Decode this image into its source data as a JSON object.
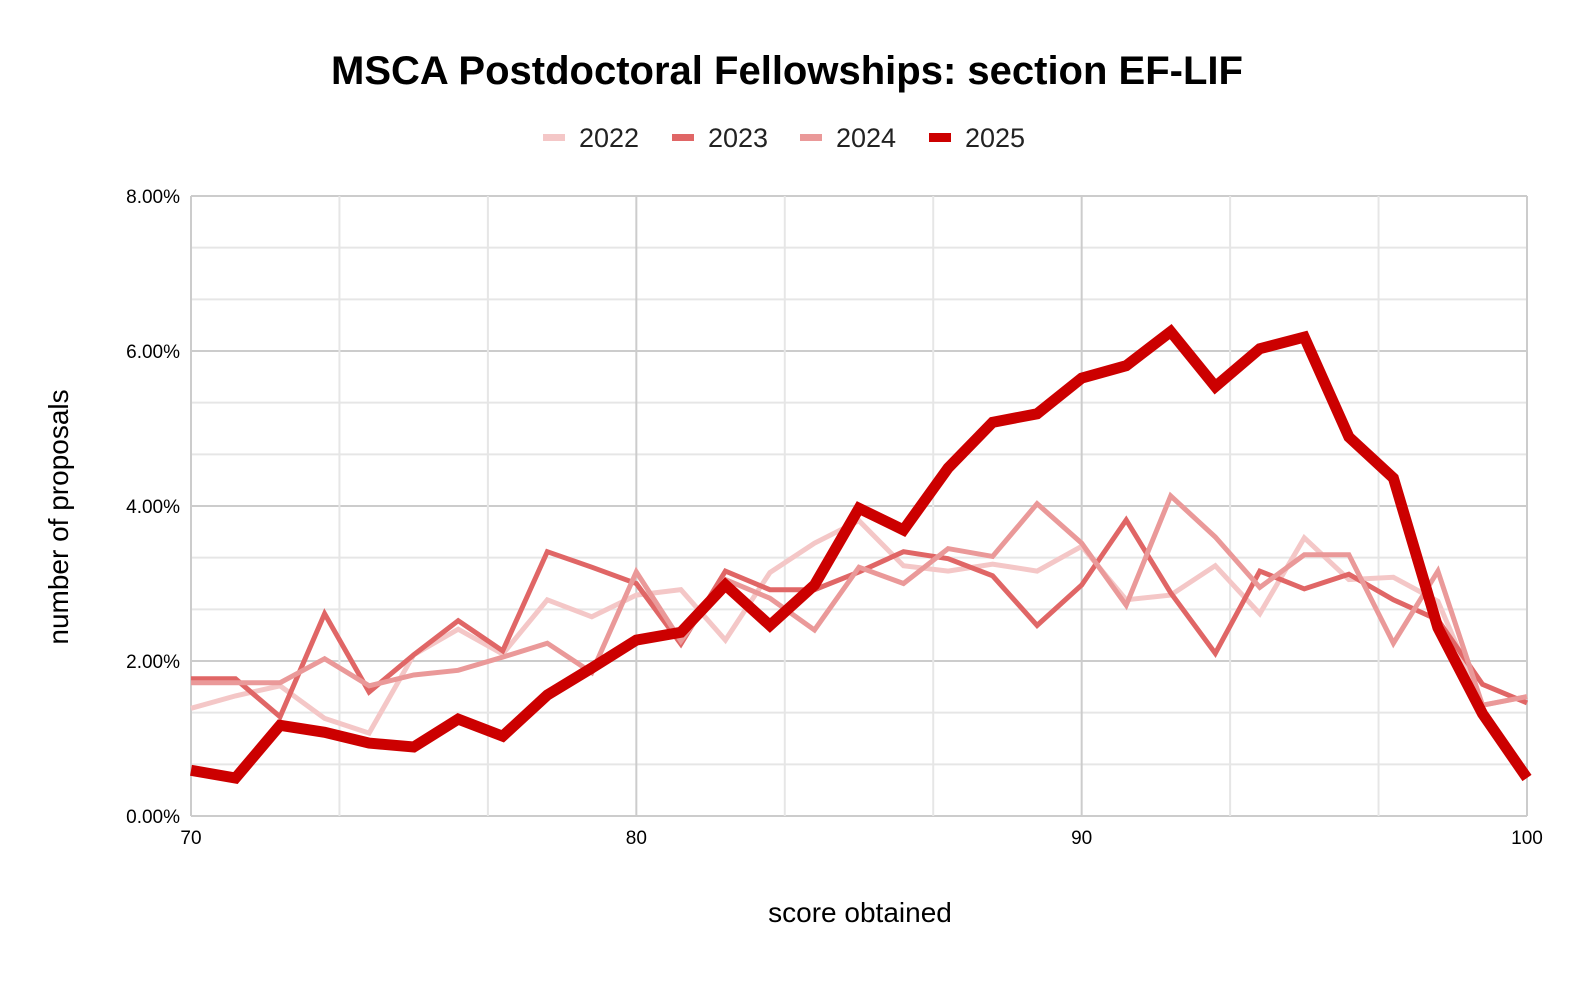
{
  "chart_data": {
    "type": "line",
    "title": "MSCA Postdoctoral Fellowships: section EF-LIF",
    "xlabel": "score obtained",
    "ylabel": "number of proposals",
    "xlim": [
      70,
      100
    ],
    "ylim": [
      0,
      8
    ],
    "x_ticks": [
      "70",
      "80",
      "90",
      "100"
    ],
    "y_ticks": [
      "0.00%",
      "2.00%",
      "4.00%",
      "6.00%",
      "8.00%"
    ],
    "grid": true,
    "legend_position": "top",
    "x": [
      70,
      71,
      72,
      73,
      74,
      75,
      76,
      77,
      78,
      79,
      80,
      81,
      82,
      83,
      84,
      85,
      86,
      87,
      88,
      89,
      90,
      91,
      92,
      93,
      94,
      95,
      96,
      97,
      98,
      99,
      100
    ],
    "series": [
      {
        "name": "2022",
        "color": "#f4c7c7",
        "width": 5,
        "values": [
          1.39,
          1.55,
          1.68,
          1.26,
          1.07,
          2.08,
          2.41,
          2.09,
          2.79,
          2.57,
          2.85,
          2.92,
          2.27,
          3.14,
          3.52,
          3.81,
          3.23,
          3.16,
          3.25,
          3.16,
          3.48,
          2.79,
          2.85,
          3.23,
          2.61,
          3.59,
          3.05,
          3.08,
          2.77,
          1.43,
          1.54
        ]
      },
      {
        "name": "2023",
        "color": "#e06666",
        "width": 5,
        "values": [
          1.77,
          1.77,
          1.28,
          2.61,
          1.6,
          2.08,
          2.52,
          2.13,
          3.41,
          3.21,
          3.0,
          2.22,
          3.16,
          2.92,
          2.92,
          3.15,
          3.41,
          3.32,
          3.1,
          2.46,
          2.98,
          3.82,
          2.88,
          2.1,
          3.16,
          2.93,
          3.12,
          2.79,
          2.53,
          1.7,
          1.46
        ]
      },
      {
        "name": "2024",
        "color": "#ea9999",
        "width": 5,
        "values": [
          1.72,
          1.72,
          1.72,
          2.03,
          1.68,
          1.82,
          1.88,
          2.05,
          2.23,
          1.85,
          3.15,
          2.26,
          3.05,
          2.81,
          2.4,
          3.21,
          3.0,
          3.45,
          3.35,
          4.03,
          3.52,
          2.72,
          4.13,
          3.6,
          2.95,
          3.37,
          3.37,
          2.23,
          3.16,
          1.43,
          1.54
        ]
      },
      {
        "name": "2025",
        "color": "#cc0000",
        "width": 11,
        "values": [
          0.59,
          0.49,
          1.17,
          1.08,
          0.94,
          0.89,
          1.25,
          1.03,
          1.56,
          1.91,
          2.27,
          2.37,
          2.98,
          2.46,
          2.98,
          3.97,
          3.69,
          4.49,
          5.08,
          5.19,
          5.65,
          5.81,
          6.25,
          5.54,
          6.03,
          6.18,
          4.89,
          4.36,
          2.43,
          1.32,
          0.49
        ]
      }
    ]
  }
}
